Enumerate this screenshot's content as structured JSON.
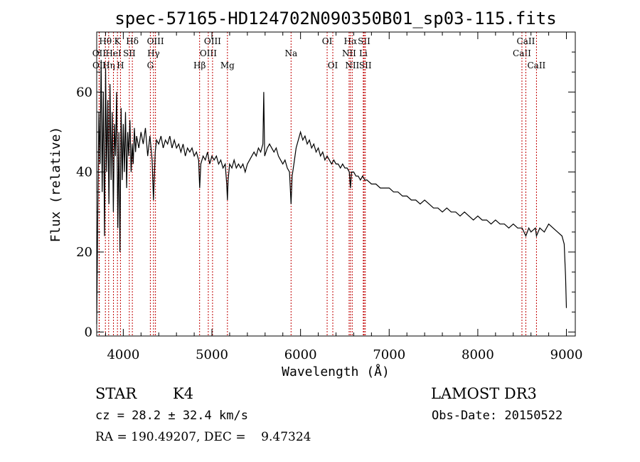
{
  "chart_data": {
    "type": "line",
    "title": "spec-57165-HD124702N090350B01_sp03-115.fits",
    "xlabel": "Wavelength (Å)",
    "ylabel": "Flux (relative)",
    "xlim": [
      3700,
      9100
    ],
    "ylim": [
      -1,
      75
    ],
    "x_ticks": [
      4000,
      5000,
      6000,
      7000,
      8000,
      9000
    ],
    "y_ticks": [
      0,
      20,
      40,
      60
    ],
    "series": [
      {
        "name": "flux",
        "points": [
          [
            3700,
            2
          ],
          [
            3712,
            30
          ],
          [
            3725,
            55
          ],
          [
            3738,
            42
          ],
          [
            3750,
            68
          ],
          [
            3762,
            35
          ],
          [
            3775,
            60
          ],
          [
            3788,
            24
          ],
          [
            3800,
            66
          ],
          [
            3812,
            40
          ],
          [
            3825,
            58
          ],
          [
            3838,
            32
          ],
          [
            3850,
            62
          ],
          [
            3862,
            38
          ],
          [
            3875,
            55
          ],
          [
            3888,
            30
          ],
          [
            3900,
            52
          ],
          [
            3912,
            44
          ],
          [
            3925,
            60
          ],
          [
            3938,
            26
          ],
          [
            3950,
            50
          ],
          [
            3962,
            20
          ],
          [
            3975,
            56
          ],
          [
            3988,
            38
          ],
          [
            4000,
            52
          ],
          [
            4012,
            40
          ],
          [
            4025,
            55
          ],
          [
            4038,
            36
          ],
          [
            4050,
            50
          ],
          [
            4062,
            44
          ],
          [
            4075,
            53
          ],
          [
            4088,
            40
          ],
          [
            4100,
            47
          ],
          [
            4112,
            42
          ],
          [
            4125,
            51
          ],
          [
            4138,
            45
          ],
          [
            4150,
            49
          ],
          [
            4175,
            46
          ],
          [
            4200,
            50
          ],
          [
            4225,
            47
          ],
          [
            4250,
            51
          ],
          [
            4275,
            44
          ],
          [
            4300,
            49
          ],
          [
            4325,
            43
          ],
          [
            4340,
            33
          ],
          [
            4360,
            45
          ],
          [
            4375,
            48
          ],
          [
            4400,
            47
          ],
          [
            4425,
            49
          ],
          [
            4450,
            46
          ],
          [
            4475,
            48
          ],
          [
            4500,
            47
          ],
          [
            4525,
            49
          ],
          [
            4550,
            46
          ],
          [
            4575,
            48
          ],
          [
            4600,
            46
          ],
          [
            4625,
            47
          ],
          [
            4650,
            45
          ],
          [
            4675,
            47
          ],
          [
            4700,
            44
          ],
          [
            4725,
            46
          ],
          [
            4750,
            45
          ],
          [
            4775,
            46
          ],
          [
            4800,
            44
          ],
          [
            4825,
            45
          ],
          [
            4850,
            43
          ],
          [
            4862,
            36
          ],
          [
            4875,
            42
          ],
          [
            4900,
            44
          ],
          [
            4925,
            43
          ],
          [
            4950,
            45
          ],
          [
            4975,
            42
          ],
          [
            5000,
            44
          ],
          [
            5025,
            43
          ],
          [
            5050,
            44
          ],
          [
            5075,
            42
          ],
          [
            5100,
            43
          ],
          [
            5125,
            41
          ],
          [
            5150,
            42
          ],
          [
            5167,
            37
          ],
          [
            5175,
            33
          ],
          [
            5183,
            38
          ],
          [
            5200,
            42
          ],
          [
            5225,
            41
          ],
          [
            5250,
            43
          ],
          [
            5275,
            41
          ],
          [
            5300,
            42
          ],
          [
            5325,
            41
          ],
          [
            5350,
            42
          ],
          [
            5375,
            40
          ],
          [
            5400,
            42
          ],
          [
            5425,
            43
          ],
          [
            5450,
            44
          ],
          [
            5475,
            45
          ],
          [
            5500,
            44
          ],
          [
            5525,
            46
          ],
          [
            5550,
            45
          ],
          [
            5575,
            47
          ],
          [
            5585,
            60
          ],
          [
            5595,
            44
          ],
          [
            5625,
            46
          ],
          [
            5650,
            47
          ],
          [
            5675,
            46
          ],
          [
            5700,
            45
          ],
          [
            5725,
            46
          ],
          [
            5750,
            44
          ],
          [
            5775,
            43
          ],
          [
            5800,
            42
          ],
          [
            5825,
            43
          ],
          [
            5850,
            41
          ],
          [
            5875,
            40
          ],
          [
            5893,
            32
          ],
          [
            5905,
            39
          ],
          [
            5925,
            42
          ],
          [
            5950,
            46
          ],
          [
            5975,
            48
          ],
          [
            6000,
            50
          ],
          [
            6025,
            48
          ],
          [
            6050,
            49
          ],
          [
            6075,
            47
          ],
          [
            6100,
            48
          ],
          [
            6125,
            46
          ],
          [
            6150,
            47
          ],
          [
            6175,
            45
          ],
          [
            6200,
            46
          ],
          [
            6225,
            44
          ],
          [
            6250,
            45
          ],
          [
            6275,
            43
          ],
          [
            6300,
            44
          ],
          [
            6325,
            43
          ],
          [
            6350,
            42
          ],
          [
            6375,
            43
          ],
          [
            6400,
            42
          ],
          [
            6425,
            42
          ],
          [
            6450,
            41
          ],
          [
            6475,
            42
          ],
          [
            6500,
            41
          ],
          [
            6525,
            41
          ],
          [
            6550,
            40
          ],
          [
            6563,
            36
          ],
          [
            6575,
            40
          ],
          [
            6600,
            40
          ],
          [
            6625,
            39
          ],
          [
            6650,
            39
          ],
          [
            6675,
            38
          ],
          [
            6700,
            39
          ],
          [
            6725,
            38
          ],
          [
            6750,
            38
          ],
          [
            6800,
            37
          ],
          [
            6850,
            37
          ],
          [
            6900,
            36
          ],
          [
            6950,
            36
          ],
          [
            7000,
            36
          ],
          [
            7050,
            35
          ],
          [
            7100,
            35
          ],
          [
            7150,
            34
          ],
          [
            7200,
            34
          ],
          [
            7250,
            33
          ],
          [
            7300,
            33
          ],
          [
            7350,
            32
          ],
          [
            7400,
            33
          ],
          [
            7450,
            32
          ],
          [
            7500,
            31
          ],
          [
            7550,
            31
          ],
          [
            7600,
            30
          ],
          [
            7650,
            31
          ],
          [
            7700,
            30
          ],
          [
            7750,
            30
          ],
          [
            7800,
            29
          ],
          [
            7850,
            30
          ],
          [
            7900,
            29
          ],
          [
            7950,
            28
          ],
          [
            8000,
            29
          ],
          [
            8050,
            28
          ],
          [
            8100,
            28
          ],
          [
            8150,
            27
          ],
          [
            8200,
            28
          ],
          [
            8250,
            27
          ],
          [
            8300,
            27
          ],
          [
            8350,
            26
          ],
          [
            8400,
            27
          ],
          [
            8450,
            26
          ],
          [
            8500,
            26
          ],
          [
            8542,
            24
          ],
          [
            8575,
            26
          ],
          [
            8600,
            25
          ],
          [
            8650,
            26
          ],
          [
            8662,
            24
          ],
          [
            8700,
            26
          ],
          [
            8750,
            25
          ],
          [
            8800,
            27
          ],
          [
            8850,
            26
          ],
          [
            8900,
            25
          ],
          [
            8950,
            24
          ],
          [
            8975,
            22
          ],
          [
            8990,
            14
          ],
          [
            9000,
            6
          ]
        ]
      }
    ],
    "lines": [
      {
        "label": "Hθ",
        "x": 3798,
        "row": 0
      },
      {
        "label": "Hη",
        "x": 3835,
        "row": 2
      },
      {
        "label": "HeI",
        "x": 3889,
        "row": 1
      },
      {
        "label": "K",
        "x": 3934,
        "row": 0
      },
      {
        "label": "H",
        "x": 3968,
        "row": 2
      },
      {
        "label": "Hδ",
        "x": 4102,
        "row": 0
      },
      {
        "label": "SII",
        "x": 4068,
        "row": 1
      },
      {
        "label": "OII",
        "x": 3727,
        "row": 1
      },
      {
        "label": "OII",
        "x": 3729,
        "row": 2
      },
      {
        "label": "Hγ",
        "x": 4341,
        "row": 1
      },
      {
        "label": "G",
        "x": 4305,
        "row": 2
      },
      {
        "label": "OIII",
        "x": 4363,
        "row": 0
      },
      {
        "label": "Hβ",
        "x": 4861,
        "row": 2
      },
      {
        "label": "OIII",
        "x": 4959,
        "row": 1
      },
      {
        "label": "OIII",
        "x": 5007,
        "row": 0
      },
      {
        "label": "Mg",
        "x": 5175,
        "row": 2
      },
      {
        "label": "Na",
        "x": 5893,
        "row": 1
      },
      {
        "label": "OI",
        "x": 6300,
        "row": 0
      },
      {
        "label": "OI",
        "x": 6364,
        "row": 2
      },
      {
        "label": "Hα",
        "x": 6563,
        "row": 0
      },
      {
        "label": "NII",
        "x": 6548,
        "row": 1
      },
      {
        "label": "NII",
        "x": 6583,
        "row": 2
      },
      {
        "label": "SII",
        "x": 6717,
        "row": 0
      },
      {
        "label": "Li",
        "x": 6708,
        "row": 1
      },
      {
        "label": "SII",
        "x": 6731,
        "row": 2
      },
      {
        "label": "CaII",
        "x": 8498,
        "row": 1
      },
      {
        "label": "CaII",
        "x": 8542,
        "row": 0
      },
      {
        "label": "CaII",
        "x": 8662,
        "row": 2
      }
    ]
  },
  "info": {
    "object_class": "STAR",
    "subclass": "K4",
    "survey": "LAMOST DR3",
    "cz": "cz = 28.2 ± 32.4 km/s",
    "obs_date": "Obs-Date: 20150522",
    "coords": "RA = 190.49207, DEC =    9.47324"
  },
  "colors": {
    "spectrum": "#000000",
    "line_markers": "#c00000",
    "axes": "#000000"
  }
}
